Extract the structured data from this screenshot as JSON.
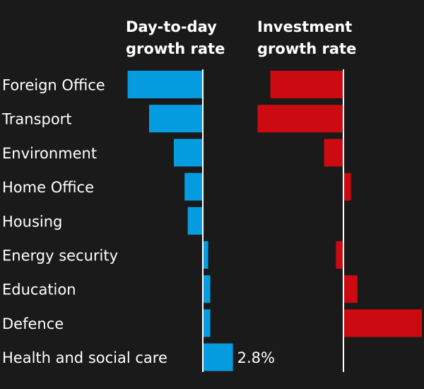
{
  "chart_data": {
    "type": "bar",
    "categories": [
      "Foreign Office",
      "Transport",
      "Environment",
      "Home Office",
      "Housing",
      "Energy security",
      "Education",
      "Defence",
      "Health and social care"
    ],
    "series": [
      {
        "name": "Day-to-day growth rate",
        "title_lines": [
          "Day-to-day",
          "growth rate"
        ],
        "color": "#069de0",
        "values": [
          -7.0,
          -5.0,
          -2.7,
          -1.7,
          -1.4,
          0.5,
          0.7,
          0.7,
          2.8
        ]
      },
      {
        "name": "Investment growth rate",
        "title_lines": [
          "Investment",
          "growth rate"
        ],
        "color": "#cc0a11",
        "values": [
          -6.8,
          -8.0,
          -1.8,
          0.7,
          0,
          -0.7,
          1.3,
          7.3,
          0
        ]
      }
    ],
    "annotations": [
      {
        "series": 0,
        "category": "Health and social care",
        "text": "2.8%"
      }
    ]
  }
}
